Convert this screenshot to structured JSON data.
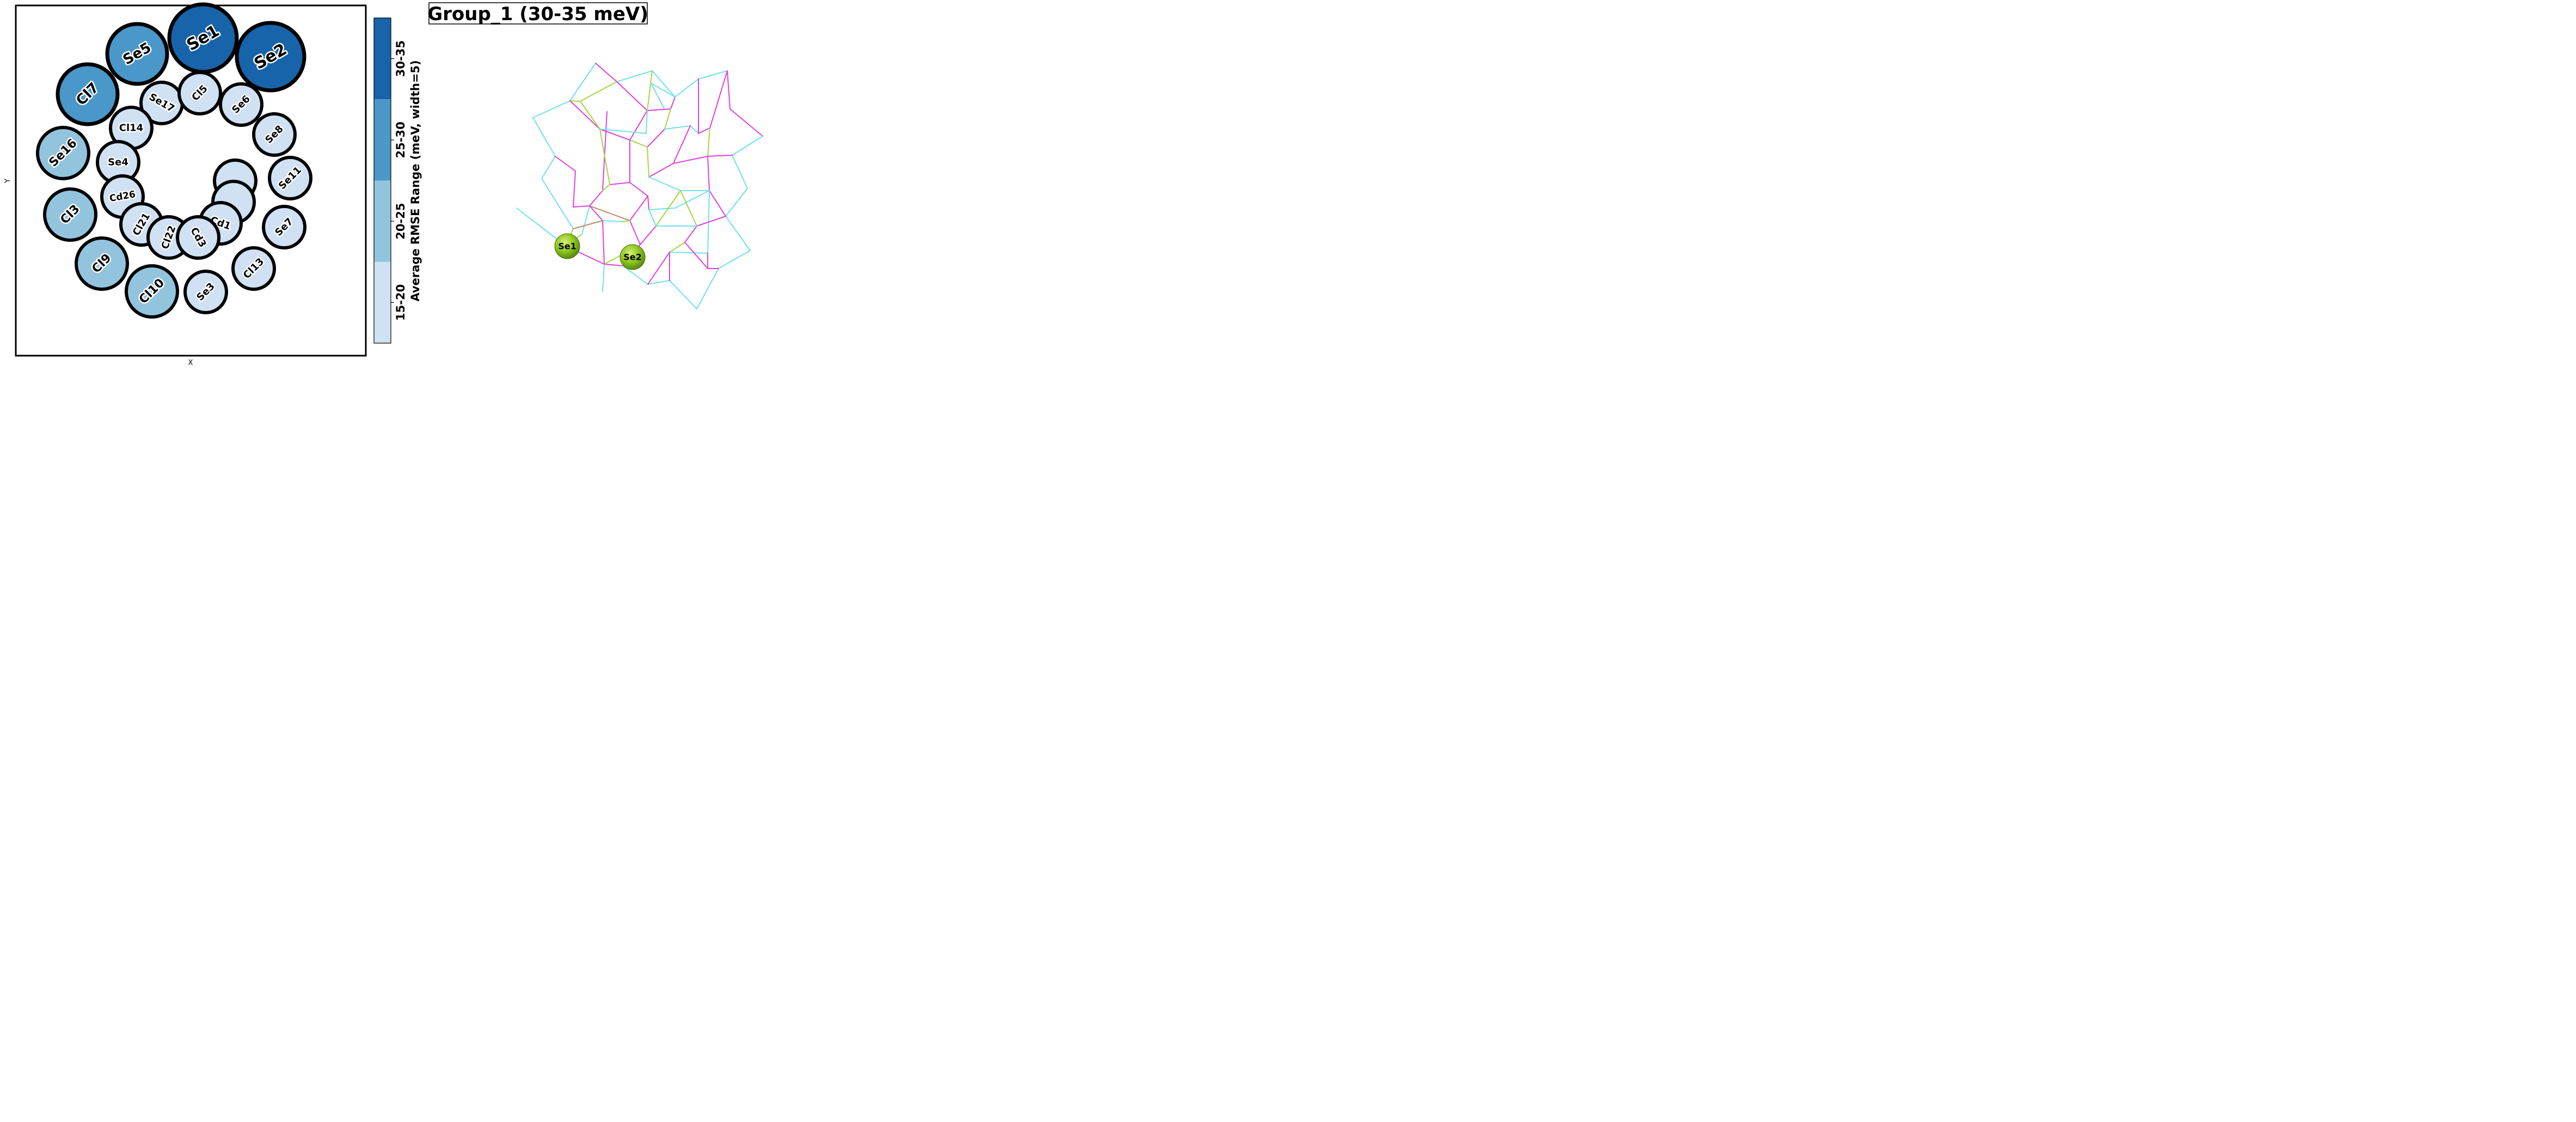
{
  "chart_data": [
    {
      "type": "bubble",
      "xlabel": "X",
      "ylabel": "Y",
      "colorbar": {
        "label": "Average RMSE Range (meV, width=5)",
        "bins": [
          "15-20",
          "20-25",
          "25-30",
          "30-35"
        ],
        "colors": [
          "#cfe1f2",
          "#93c4de",
          "#4a98c9",
          "#1764ab"
        ]
      },
      "bubbles": [
        {
          "label": "Se1",
          "bin": 3
        },
        {
          "label": "Se2",
          "bin": 3
        },
        {
          "label": "Se5",
          "bin": 2
        },
        {
          "label": "Cl7",
          "bin": 2
        },
        {
          "label": "Se16",
          "bin": 1
        },
        {
          "label": "Cl3",
          "bin": 1
        },
        {
          "label": "Cl9",
          "bin": 1
        },
        {
          "label": "Cl10",
          "bin": 1
        },
        {
          "label": "Se17",
          "bin": 0
        },
        {
          "label": "Cl5",
          "bin": 0
        },
        {
          "label": "Se6",
          "bin": 0
        },
        {
          "label": "Cl14",
          "bin": 0
        },
        {
          "label": "Se8",
          "bin": 0
        },
        {
          "label": "Se4",
          "bin": 0
        },
        {
          "label": "Se11",
          "bin": 0
        },
        {
          "label": "Cd26",
          "bin": 0
        },
        {
          "label": "",
          "bin": 0
        },
        {
          "label": "",
          "bin": 0
        },
        {
          "label": "Cl21",
          "bin": 0
        },
        {
          "label": "Cd1",
          "bin": 0
        },
        {
          "label": "Cl22",
          "bin": 0
        },
        {
          "label": "Cd3",
          "bin": 0
        },
        {
          "label": "Se7",
          "bin": 0
        },
        {
          "label": "Cl13",
          "bin": 0
        },
        {
          "label": "Se3",
          "bin": 0
        }
      ]
    },
    {
      "type": "structure",
      "title": "Group_1 (30-35 meV)",
      "highlighted_atoms": [
        "Se1",
        "Se2"
      ],
      "highlight_color": "#8fc820",
      "bond_colors": [
        "#e040d8",
        "#a0d840",
        "#70e0f0",
        "#c08a60"
      ]
    }
  ]
}
